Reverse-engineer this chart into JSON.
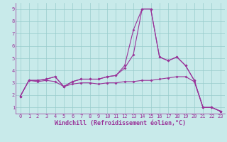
{
  "title": "",
  "xlabel": "Windchill (Refroidissement éolien,°C)",
  "bg_color": "#c8eaea",
  "line_color": "#993399",
  "grid_color": "#99cccc",
  "x": [
    0,
    1,
    2,
    3,
    4,
    5,
    6,
    7,
    8,
    9,
    10,
    11,
    12,
    13,
    14,
    15,
    16,
    17,
    18,
    19,
    20,
    21,
    22,
    23
  ],
  "line1": [
    1.9,
    3.2,
    3.2,
    3.3,
    3.5,
    2.7,
    3.1,
    3.3,
    3.3,
    3.3,
    3.5,
    3.6,
    4.4,
    7.3,
    9.0,
    9.0,
    5.1,
    4.8,
    5.1,
    4.4,
    3.2,
    1.0,
    1.0,
    0.7
  ],
  "line2": [
    1.9,
    3.2,
    3.2,
    3.3,
    3.5,
    2.7,
    3.1,
    3.3,
    3.3,
    3.3,
    3.5,
    3.6,
    4.2,
    5.3,
    9.0,
    9.0,
    5.1,
    4.8,
    5.1,
    4.4,
    3.2,
    1.0,
    1.0,
    0.7
  ],
  "line3": [
    1.9,
    3.2,
    3.1,
    3.2,
    3.1,
    2.7,
    2.9,
    3.0,
    3.0,
    2.9,
    3.0,
    3.0,
    3.1,
    3.1,
    3.2,
    3.2,
    3.3,
    3.4,
    3.5,
    3.5,
    3.1,
    1.0,
    1.0,
    0.7
  ],
  "ylim": [
    0.5,
    9.5
  ],
  "xlim": [
    -0.5,
    23.5
  ],
  "yticks": [
    1,
    2,
    3,
    4,
    5,
    6,
    7,
    8,
    9
  ],
  "xticks": [
    0,
    1,
    2,
    3,
    4,
    5,
    6,
    7,
    8,
    9,
    10,
    11,
    12,
    13,
    14,
    15,
    16,
    17,
    18,
    19,
    20,
    21,
    22,
    23
  ],
  "marker": "D",
  "markersize": 2.0,
  "linewidth": 0.8,
  "tick_fontsize": 5.0,
  "label_fontsize": 6.0
}
